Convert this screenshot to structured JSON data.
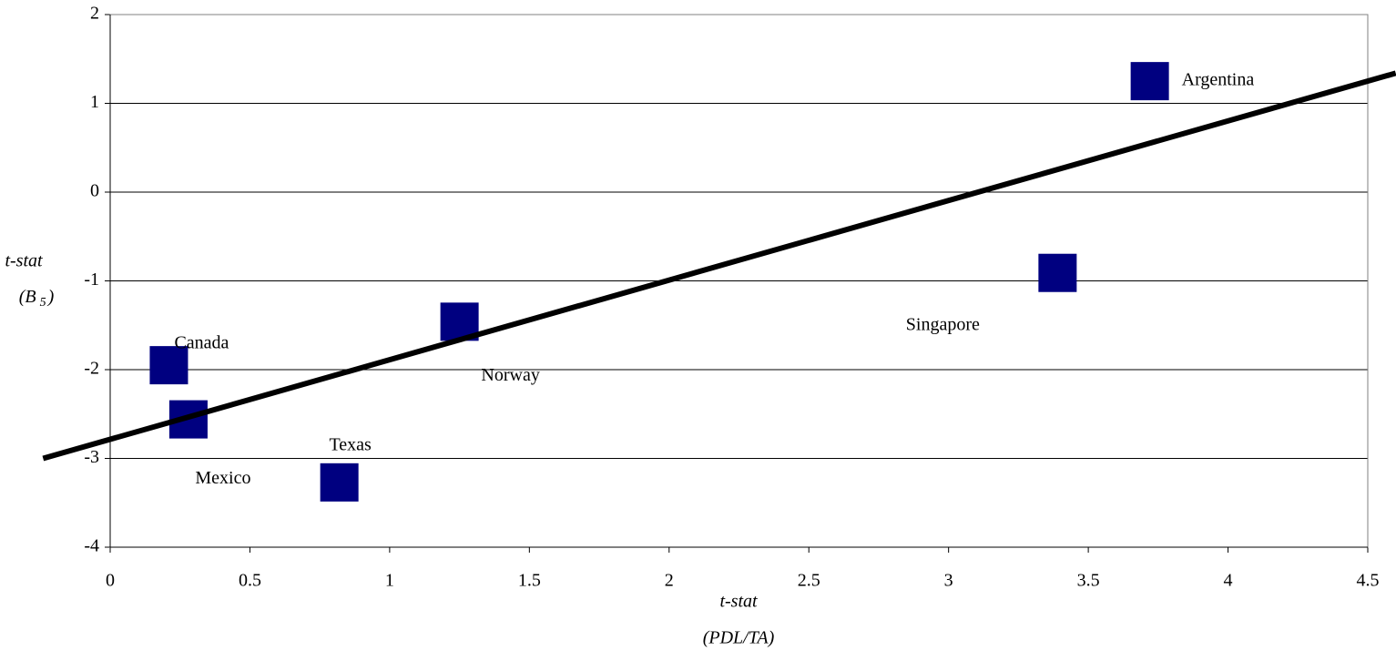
{
  "chart_data": {
    "type": "scatter",
    "xlabel": [
      "t-stat",
      "(PDL/TA)"
    ],
    "ylabel": [
      "t-stat",
      "(B",
      "5",
      ")"
    ],
    "xlim": [
      0,
      4.5
    ],
    "xticks": [
      0,
      0.5,
      1,
      1.5,
      2,
      2.5,
      3,
      3.5,
      4,
      4.5
    ],
    "ylim": [
      -4,
      2
    ],
    "yticks": [
      -4,
      -3,
      -2,
      -1,
      0,
      1,
      2
    ],
    "grid": true,
    "series": [
      {
        "color": "#000080",
        "labels": [
          "Argentina",
          "Singapore",
          "Norway",
          "Canada",
          "Mexico",
          "Texas"
        ],
        "x": [
          3.72,
          3.39,
          1.25,
          0.21,
          0.28,
          0.82
        ],
        "values": [
          1.25,
          -0.91,
          -1.46,
          -1.95,
          -2.56,
          -3.27
        ]
      }
    ],
    "trendline": {
      "color": "#000000",
      "x": [
        -0.24,
        4.6
      ],
      "values": [
        -3.0,
        1.34
      ]
    }
  }
}
